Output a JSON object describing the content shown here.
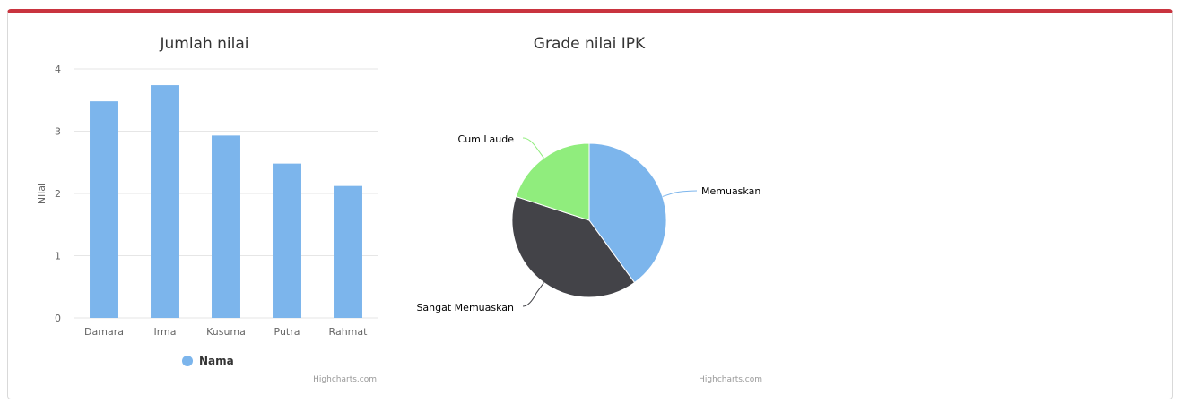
{
  "colors": {
    "accent_top": "#c9343f",
    "bar": "#7cb5ec",
    "pie": [
      "#7cb5ec",
      "#434348",
      "#90ed7d"
    ]
  },
  "chart_data": [
    {
      "type": "bar",
      "title": "Jumlah nilai",
      "ylabel": "Nilai",
      "categories": [
        "Damara",
        "Irma",
        "Kusuma",
        "Putra",
        "Rahmat"
      ],
      "yticks": [
        "0",
        "1",
        "2",
        "3",
        "4"
      ],
      "ylim": [
        0,
        4
      ],
      "series": [
        {
          "name": "Nama",
          "values": [
            3.48,
            3.74,
            2.93,
            2.48,
            2.12
          ]
        }
      ],
      "legend": "bottom-center",
      "grid": true,
      "credit": "Highcharts.com"
    },
    {
      "type": "pie",
      "title": "Grade nilai IPK",
      "slices": [
        {
          "label": "Memuaskan",
          "value": 40
        },
        {
          "label": "Sangat Memuaskan",
          "value": 40
        },
        {
          "label": "Cum Laude",
          "value": 20
        }
      ],
      "credit": "Highcharts.com"
    }
  ]
}
